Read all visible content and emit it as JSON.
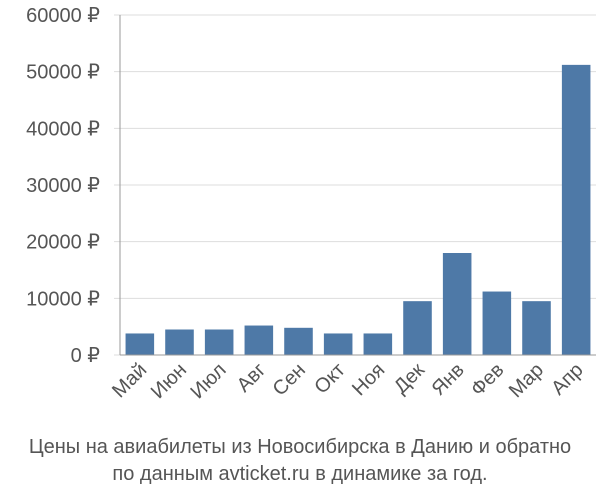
{
  "chart_data": {
    "type": "bar",
    "categories": [
      "Май",
      "Июн",
      "Июл",
      "Авг",
      "Сен",
      "Окт",
      "Ноя",
      "Дек",
      "Янв",
      "Фев",
      "Мар",
      "Апр"
    ],
    "values": [
      3800,
      4500,
      4500,
      5200,
      4800,
      3800,
      3800,
      9500,
      18000,
      11200,
      9500,
      51200
    ],
    "ylim": [
      0,
      60000
    ],
    "yticks": [
      0,
      10000,
      20000,
      30000,
      40000,
      50000,
      60000
    ],
    "ytick_labels": [
      "0 ₽",
      "10000 ₽",
      "20000 ₽",
      "30000 ₽",
      "40000 ₽",
      "50000 ₽",
      "60000 ₽"
    ],
    "grid": true,
    "bar_color": "#4e79a7",
    "grid_color": "#dddddd",
    "axis_color": "#999999"
  },
  "caption": {
    "line1": "Цены на авиабилеты из Новосибирска в Данию и обратно",
    "line2": "по данным avticket.ru в динамике за год."
  }
}
